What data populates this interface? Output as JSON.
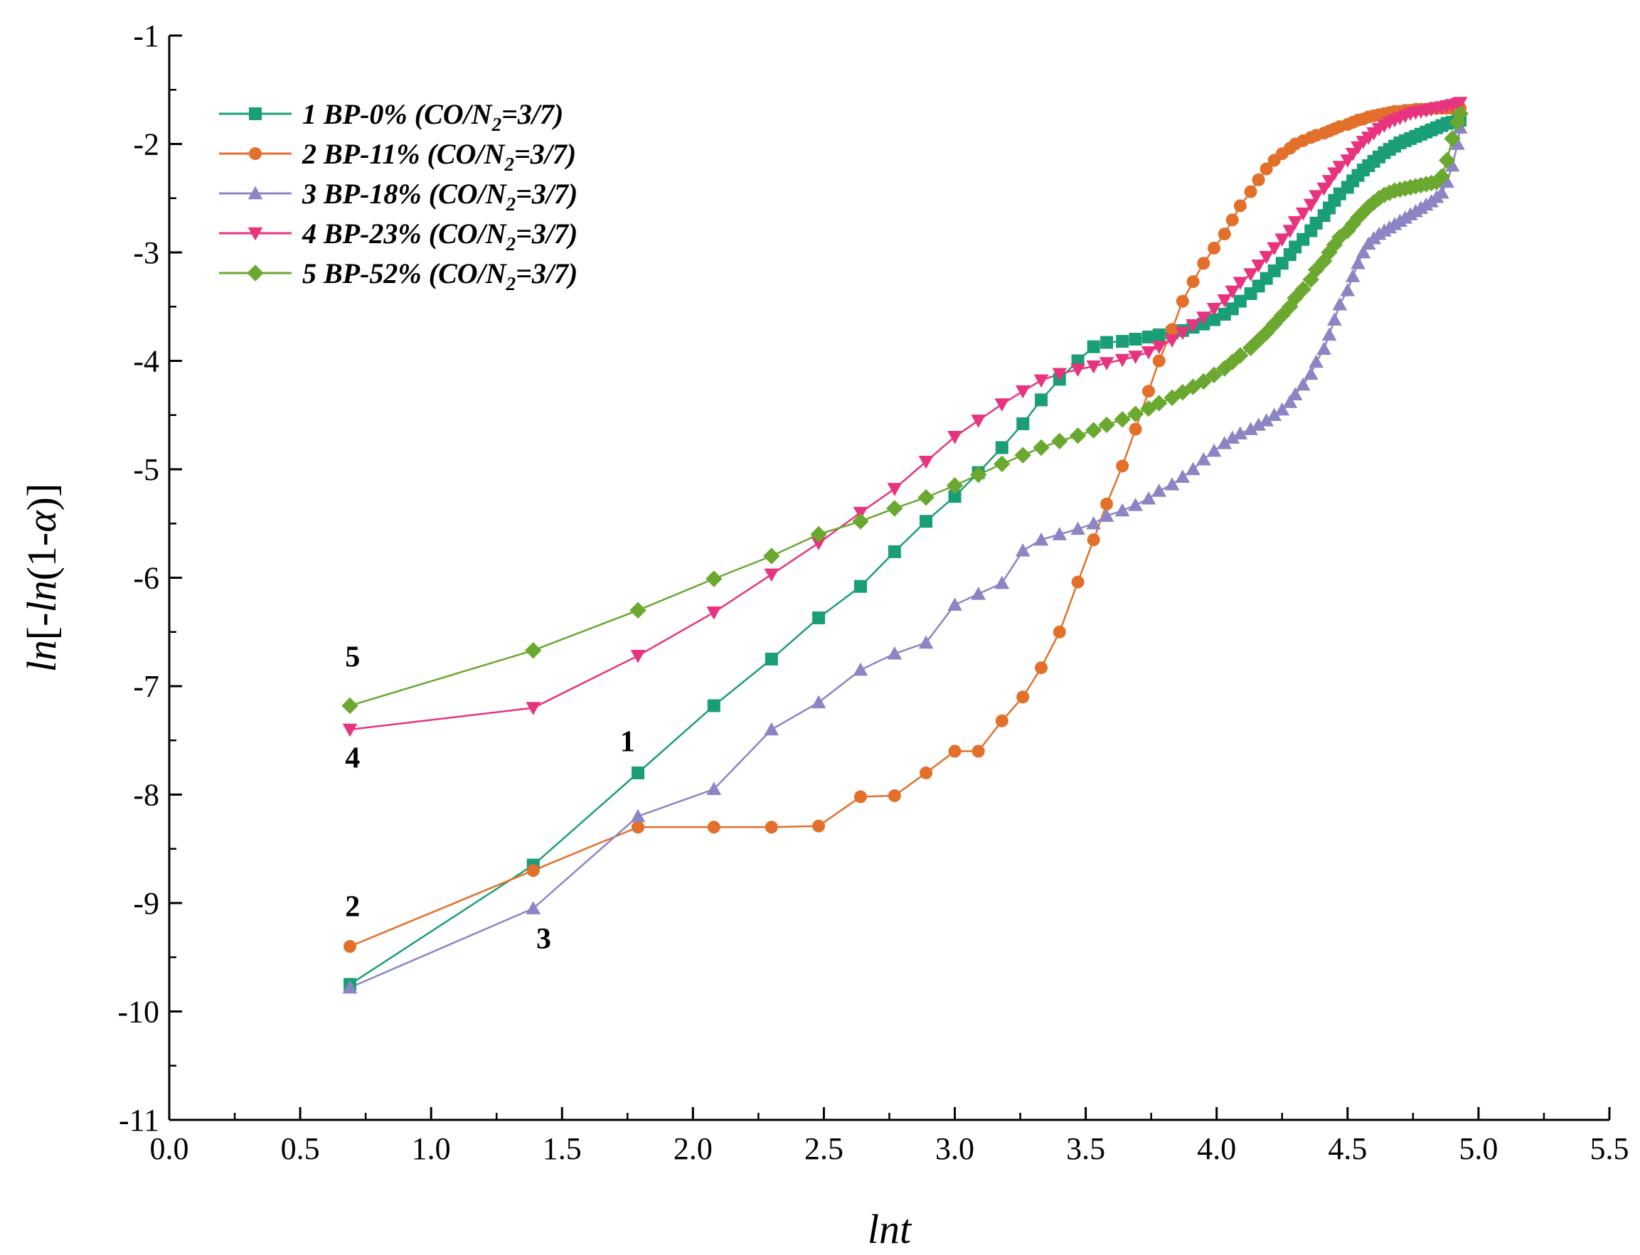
{
  "chart_data": {
    "type": "line",
    "title": "",
    "xlabel": "lnt",
    "ylabel_parts": [
      "ln",
      "[-",
      "ln",
      "(1-",
      "α",
      ")]"
    ],
    "xlim": [
      0,
      5.5
    ],
    "ylim": [
      -11,
      -1
    ],
    "xticks": [
      0.0,
      0.5,
      1.0,
      1.5,
      2.0,
      2.5,
      3.0,
      3.5,
      4.0,
      4.5,
      5.0,
      5.5
    ],
    "xtick_labels": [
      "0.0",
      "0.5",
      "1.0",
      "1.5",
      "2.0",
      "2.5",
      "3.0",
      "3.5",
      "4.0",
      "4.5",
      "5.0",
      "5.5"
    ],
    "yticks": [
      -1,
      -2,
      -3,
      -4,
      -5,
      -6,
      -7,
      -8,
      -9,
      -10,
      -11
    ],
    "ytick_labels": [
      "-1",
      "-2",
      "-3",
      "-4",
      "-5",
      "-6",
      "-7",
      "-8",
      "-9",
      "-10",
      "-11"
    ],
    "grid": false,
    "legend_position": "top-left",
    "series": [
      {
        "name": "1 BP-0% (CO/N2=3/7)",
        "legend_parts": [
          "1 BP-0% (CO/N",
          "2",
          "=3/7)"
        ],
        "color": "#1a9e77",
        "marker": "square",
        "x": [
          0.69,
          1.39,
          1.79,
          2.08,
          2.3,
          2.48,
          2.64,
          2.77,
          2.89,
          3.0,
          3.09,
          3.18,
          3.26,
          3.33,
          3.4,
          3.47,
          3.53,
          3.58,
          3.64,
          3.69,
          3.74,
          3.78,
          3.83,
          3.87,
          3.91,
          3.95,
          3.99,
          4.03,
          4.06,
          4.09,
          4.13,
          4.16,
          4.19,
          4.22,
          4.25,
          4.28,
          4.3,
          4.33,
          4.36,
          4.38,
          4.41,
          4.43,
          4.45,
          4.47,
          4.5,
          4.52,
          4.54,
          4.56,
          4.58,
          4.6,
          4.62,
          4.64,
          4.66,
          4.68,
          4.7,
          4.72,
          4.74,
          4.76,
          4.78,
          4.8,
          4.82,
          4.84,
          4.86,
          4.88,
          4.9,
          4.92,
          4.93
        ],
        "y": [
          -9.75,
          -8.65,
          -7.8,
          -7.18,
          -6.75,
          -6.37,
          -6.08,
          -5.76,
          -5.48,
          -5.25,
          -5.03,
          -4.8,
          -4.58,
          -4.36,
          -4.17,
          -4.0,
          -3.87,
          -3.83,
          -3.82,
          -3.8,
          -3.78,
          -3.76,
          -3.74,
          -3.72,
          -3.69,
          -3.66,
          -3.62,
          -3.57,
          -3.52,
          -3.45,
          -3.38,
          -3.31,
          -3.24,
          -3.17,
          -3.1,
          -3.02,
          -2.95,
          -2.88,
          -2.8,
          -2.73,
          -2.66,
          -2.59,
          -2.52,
          -2.46,
          -2.4,
          -2.34,
          -2.29,
          -2.24,
          -2.2,
          -2.16,
          -2.12,
          -2.08,
          -2.05,
          -2.02,
          -1.99,
          -1.97,
          -1.95,
          -1.93,
          -1.91,
          -1.89,
          -1.87,
          -1.85,
          -1.83,
          -1.81,
          -1.8,
          -1.79,
          -1.78
        ]
      },
      {
        "name": "2 BP-11% (CO/N2=3/7)",
        "legend_parts": [
          "2 BP-11% (CO/N",
          "2",
          "=3/7)"
        ],
        "color": "#e2702b",
        "marker": "circle",
        "x": [
          0.69,
          1.39,
          1.79,
          2.08,
          2.3,
          2.48,
          2.64,
          2.77,
          2.89,
          3.0,
          3.09,
          3.18,
          3.26,
          3.33,
          3.4,
          3.47,
          3.53,
          3.58,
          3.64,
          3.69,
          3.74,
          3.78,
          3.83,
          3.87,
          3.91,
          3.95,
          3.99,
          4.03,
          4.06,
          4.09,
          4.13,
          4.16,
          4.19,
          4.22,
          4.25,
          4.28,
          4.3,
          4.33,
          4.36,
          4.38,
          4.41,
          4.43,
          4.45,
          4.47,
          4.5,
          4.52,
          4.54,
          4.56,
          4.58,
          4.6,
          4.62,
          4.64,
          4.66,
          4.68,
          4.7,
          4.72,
          4.74,
          4.76,
          4.78,
          4.8,
          4.82,
          4.84,
          4.86,
          4.88,
          4.9,
          4.92,
          4.93
        ],
        "y": [
          -9.4,
          -8.7,
          -8.3,
          -8.3,
          -8.3,
          -8.29,
          -8.02,
          -8.01,
          -7.8,
          -7.6,
          -7.6,
          -7.32,
          -7.1,
          -6.83,
          -6.5,
          -6.04,
          -5.65,
          -5.32,
          -4.97,
          -4.63,
          -4.28,
          -4.0,
          -3.71,
          -3.45,
          -3.27,
          -3.1,
          -2.96,
          -2.83,
          -2.7,
          -2.57,
          -2.44,
          -2.33,
          -2.23,
          -2.15,
          -2.09,
          -2.04,
          -2.0,
          -1.97,
          -1.94,
          -1.92,
          -1.9,
          -1.88,
          -1.86,
          -1.84,
          -1.82,
          -1.8,
          -1.78,
          -1.77,
          -1.75,
          -1.74,
          -1.73,
          -1.72,
          -1.71,
          -1.7,
          -1.7,
          -1.69,
          -1.69,
          -1.68,
          -1.68,
          -1.68,
          -1.67,
          -1.67,
          -1.67,
          -1.67,
          -1.67,
          -1.67,
          -1.67
        ]
      },
      {
        "name": "3 BP-18% (CO/N2=3/7)",
        "legend_parts": [
          "3 BP-18% (CO/N",
          "2",
          "=3/7)"
        ],
        "color": "#8c85c4",
        "marker": "triangle-up",
        "x": [
          0.69,
          1.39,
          1.79,
          2.08,
          2.3,
          2.48,
          2.64,
          2.77,
          2.89,
          3.0,
          3.09,
          3.18,
          3.26,
          3.33,
          3.4,
          3.47,
          3.53,
          3.58,
          3.64,
          3.69,
          3.74,
          3.78,
          3.83,
          3.87,
          3.91,
          3.95,
          3.99,
          4.03,
          4.06,
          4.09,
          4.13,
          4.16,
          4.19,
          4.22,
          4.25,
          4.28,
          4.3,
          4.33,
          4.36,
          4.38,
          4.41,
          4.43,
          4.45,
          4.47,
          4.5,
          4.52,
          4.54,
          4.56,
          4.58,
          4.6,
          4.62,
          4.64,
          4.66,
          4.68,
          4.7,
          4.72,
          4.74,
          4.76,
          4.78,
          4.8,
          4.82,
          4.84,
          4.86,
          4.88,
          4.9,
          4.92,
          4.93
        ],
        "y": [
          -9.78,
          -9.05,
          -8.2,
          -7.95,
          -7.4,
          -7.15,
          -6.85,
          -6.7,
          -6.6,
          -6.25,
          -6.15,
          -6.05,
          -5.75,
          -5.65,
          -5.6,
          -5.55,
          -5.5,
          -5.43,
          -5.38,
          -5.33,
          -5.27,
          -5.2,
          -5.14,
          -5.07,
          -5.0,
          -4.91,
          -4.83,
          -4.76,
          -4.71,
          -4.67,
          -4.63,
          -4.59,
          -4.55,
          -4.5,
          -4.45,
          -4.38,
          -4.31,
          -4.22,
          -4.12,
          -4.01,
          -3.89,
          -3.76,
          -3.62,
          -3.48,
          -3.35,
          -3.22,
          -3.1,
          -3.0,
          -2.92,
          -2.87,
          -2.83,
          -2.8,
          -2.77,
          -2.74,
          -2.71,
          -2.68,
          -2.65,
          -2.62,
          -2.59,
          -2.56,
          -2.53,
          -2.49,
          -2.45,
          -2.35,
          -2.2,
          -2.0,
          -1.85
        ]
      },
      {
        "name": "4 BP-23% (CO/N2=3/7)",
        "legend_parts": [
          "4 BP-23% (CO/N",
          "2",
          "=3/7)"
        ],
        "color": "#e8337f",
        "marker": "triangle-down",
        "x": [
          0.69,
          1.39,
          1.79,
          2.08,
          2.3,
          2.48,
          2.64,
          2.77,
          2.89,
          3.0,
          3.09,
          3.18,
          3.26,
          3.33,
          3.4,
          3.47,
          3.53,
          3.58,
          3.64,
          3.69,
          3.74,
          3.78,
          3.83,
          3.87,
          3.91,
          3.95,
          3.99,
          4.03,
          4.06,
          4.09,
          4.13,
          4.16,
          4.19,
          4.22,
          4.25,
          4.28,
          4.3,
          4.33,
          4.36,
          4.38,
          4.41,
          4.43,
          4.45,
          4.47,
          4.5,
          4.52,
          4.54,
          4.56,
          4.58,
          4.6,
          4.62,
          4.64,
          4.66,
          4.68,
          4.7,
          4.72,
          4.74,
          4.76,
          4.78,
          4.8,
          4.82,
          4.84,
          4.86,
          4.88,
          4.9,
          4.92,
          4.93
        ],
        "y": [
          -7.4,
          -7.2,
          -6.72,
          -6.32,
          -5.97,
          -5.68,
          -5.4,
          -5.18,
          -4.93,
          -4.7,
          -4.55,
          -4.4,
          -4.28,
          -4.18,
          -4.12,
          -4.08,
          -4.05,
          -4.02,
          -3.99,
          -3.96,
          -3.92,
          -3.87,
          -3.81,
          -3.74,
          -3.67,
          -3.6,
          -3.52,
          -3.44,
          -3.36,
          -3.28,
          -3.2,
          -3.12,
          -3.04,
          -2.96,
          -2.88,
          -2.8,
          -2.72,
          -2.64,
          -2.56,
          -2.48,
          -2.41,
          -2.34,
          -2.27,
          -2.21,
          -2.15,
          -2.09,
          -2.03,
          -1.98,
          -1.94,
          -1.9,
          -1.86,
          -1.83,
          -1.8,
          -1.78,
          -1.76,
          -1.74,
          -1.72,
          -1.71,
          -1.7,
          -1.69,
          -1.68,
          -1.67,
          -1.66,
          -1.65,
          -1.64,
          -1.63,
          -1.62
        ]
      },
      {
        "name": "5 BP-52% (CO/N2=3/7)",
        "legend_parts": [
          "5 BP-52% (CO/N",
          "2",
          "=3/7)"
        ],
        "color": "#6aa82f",
        "marker": "diamond",
        "x": [
          0.69,
          1.39,
          1.79,
          2.08,
          2.3,
          2.48,
          2.64,
          2.77,
          2.89,
          3.0,
          3.09,
          3.18,
          3.26,
          3.33,
          3.4,
          3.47,
          3.53,
          3.58,
          3.64,
          3.69,
          3.74,
          3.78,
          3.83,
          3.87,
          3.91,
          3.95,
          3.99,
          4.03,
          4.06,
          4.09,
          4.13,
          4.16,
          4.19,
          4.22,
          4.25,
          4.28,
          4.3,
          4.33,
          4.36,
          4.38,
          4.41,
          4.43,
          4.45,
          4.47,
          4.5,
          4.52,
          4.54,
          4.56,
          4.58,
          4.6,
          4.62,
          4.64,
          4.66,
          4.68,
          4.7,
          4.72,
          4.74,
          4.76,
          4.78,
          4.8,
          4.82,
          4.84,
          4.86,
          4.88,
          4.9,
          4.92,
          4.93
        ],
        "y": [
          -7.18,
          -6.67,
          -6.3,
          -6.01,
          -5.8,
          -5.6,
          -5.48,
          -5.36,
          -5.26,
          -5.15,
          -5.05,
          -4.95,
          -4.87,
          -4.8,
          -4.74,
          -4.69,
          -4.64,
          -4.59,
          -4.54,
          -4.49,
          -4.44,
          -4.39,
          -4.34,
          -4.29,
          -4.24,
          -4.19,
          -4.13,
          -4.07,
          -4.01,
          -3.95,
          -3.88,
          -3.81,
          -3.74,
          -3.66,
          -3.58,
          -3.5,
          -3.42,
          -3.34,
          -3.25,
          -3.16,
          -3.08,
          -3.0,
          -2.93,
          -2.86,
          -2.8,
          -2.74,
          -2.68,
          -2.63,
          -2.58,
          -2.54,
          -2.5,
          -2.47,
          -2.45,
          -2.43,
          -2.42,
          -2.41,
          -2.4,
          -2.39,
          -2.38,
          -2.37,
          -2.36,
          -2.35,
          -2.3,
          -2.15,
          -1.95,
          -1.8,
          -1.72
        ]
      }
    ],
    "annotations": [
      {
        "text": "5",
        "x": 0.7,
        "y": -6.82
      },
      {
        "text": "4",
        "x": 0.7,
        "y": -7.75
      },
      {
        "text": "1",
        "x": 1.75,
        "y": -7.6
      },
      {
        "text": "2",
        "x": 0.7,
        "y": -9.12
      },
      {
        "text": "3",
        "x": 1.43,
        "y": -9.42
      }
    ]
  }
}
